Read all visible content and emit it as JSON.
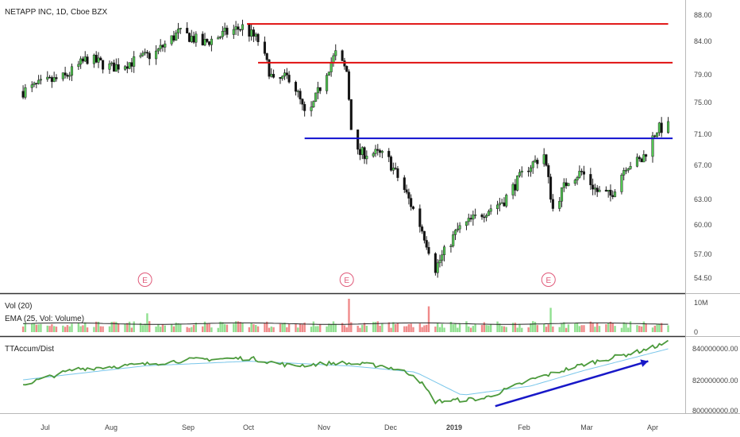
{
  "main": {
    "title": "NETAPP INC, 1D, Cboe BZX",
    "price_ticks": [
      "88.00",
      "84.00",
      "79.00",
      "75.00",
      "71.00",
      "67.00",
      "63.00",
      "60.00",
      "57.00",
      "54.50"
    ],
    "earnings_marker": "E"
  },
  "volume_panel": {
    "title": "Vol (20)",
    "subtitle": "EMA (25, Vol: Volume)",
    "ticks": [
      "10M",
      "0"
    ]
  },
  "accum_panel": {
    "title": "TTAccum/Dist",
    "ticks": [
      "840000000.00",
      "820000000.00",
      "800000000.00"
    ]
  },
  "time_axis": {
    "labels": [
      "Jul",
      "Aug",
      "Sep",
      "Oct",
      "Nov",
      "Dec",
      "2019",
      "Feb",
      "Mar",
      "Apr"
    ]
  },
  "colors": {
    "up": "#52c852",
    "down": "#111111",
    "vol_up": "#90e090",
    "vol_down": "#f08a8a",
    "resistance": "#e01010",
    "support": "#1010d0",
    "accum_line": "#4c9a3c",
    "accum_ma": "#79c6ea",
    "trend_arrow": "#1818c8",
    "earnings": "#e05a7a"
  },
  "chart_data": [
    {
      "type": "candlestick",
      "title": "NETAPP INC, 1D, Cboe BZX",
      "x_range": [
        "2018-06-21",
        "2019-04-08"
      ],
      "y_scale": "log",
      "y_ticks": [
        88.0,
        84.0,
        79.0,
        75.0,
        71.0,
        67.0,
        63.0,
        60.0,
        57.0,
        54.5
      ],
      "price_path": [
        [
          "2018-06-21",
          76.6
        ],
        [
          "2018-07-01",
          77.8
        ],
        [
          "2018-07-10",
          78.6
        ],
        [
          "2018-07-20",
          81.3
        ],
        [
          "2018-07-31",
          80.0
        ],
        [
          "2018-08-10",
          80.9
        ],
        [
          "2018-08-20",
          82.2
        ],
        [
          "2018-08-30",
          85.2
        ],
        [
          "2018-09-05",
          84.5
        ],
        [
          "2018-09-10",
          83.5
        ],
        [
          "2018-09-20",
          85.1
        ],
        [
          "2018-09-28",
          86.1
        ],
        [
          "2018-10-05",
          84.0
        ],
        [
          "2018-10-12",
          77.8
        ],
        [
          "2018-10-20",
          78.8
        ],
        [
          "2018-10-27",
          72.5
        ],
        [
          "2018-11-05",
          79.5
        ],
        [
          "2018-11-09",
          82.0
        ],
        [
          "2018-11-14",
          79.4
        ],
        [
          "2018-11-17",
          68.3
        ],
        [
          "2018-11-25",
          68.5
        ],
        [
          "2018-12-02",
          68.0
        ],
        [
          "2018-12-10",
          64.0
        ],
        [
          "2018-12-18",
          59.5
        ],
        [
          "2018-12-24",
          55.5
        ],
        [
          "2019-01-03",
          59.5
        ],
        [
          "2019-01-15",
          61.5
        ],
        [
          "2019-01-24",
          62.8
        ],
        [
          "2019-02-03",
          66.5
        ],
        [
          "2019-02-11",
          68.3
        ],
        [
          "2019-02-15",
          61.8
        ],
        [
          "2019-02-22",
          65.3
        ],
        [
          "2019-02-28",
          66.1
        ],
        [
          "2019-03-07",
          63.8
        ],
        [
          "2019-03-13",
          63.3
        ],
        [
          "2019-03-20",
          67.0
        ],
        [
          "2019-03-27",
          67.5
        ],
        [
          "2019-04-03",
          71.5
        ],
        [
          "2019-04-08",
          71.8
        ]
      ],
      "resistance_levels": [
        {
          "price": 86.6,
          "from": "2018-09-30",
          "to": "2019-04-08"
        },
        {
          "price": 80.7,
          "from": "2018-10-05",
          "to": "2019-04-10"
        }
      ],
      "support_levels": [
        {
          "price": 70.3,
          "from": "2018-10-26",
          "to": "2019-04-10"
        }
      ],
      "earnings_events": [
        "2018-08-15",
        "2018-11-14",
        "2019-02-13"
      ]
    },
    {
      "type": "bar",
      "title": "Vol (20)",
      "subtitle": "EMA (25, Vol: Volume)",
      "unit": "shares",
      "y_ticks": [
        "10M",
        "0"
      ],
      "ylim": [
        0,
        11000000
      ],
      "typical_volume": 2500000,
      "ema_level": 2800000,
      "notable_bars": [
        {
          "date": "2018-08-16",
          "value": 6200000,
          "direction": "up"
        },
        {
          "date": "2018-11-15",
          "value": 11000000,
          "direction": "down"
        },
        {
          "date": "2018-12-21",
          "value": 8500000,
          "direction": "down"
        },
        {
          "date": "2019-02-14",
          "value": 8000000,
          "direction": "up"
        }
      ]
    },
    {
      "type": "line",
      "title": "TTAccum/Dist",
      "y_ticks": [
        840000000,
        820000000,
        800000000
      ],
      "ylim": [
        795000000,
        847000000
      ],
      "series_path": [
        [
          "2018-06-21",
          817000000
        ],
        [
          "2018-07-15",
          827000000
        ],
        [
          "2018-08-15",
          830000000
        ],
        [
          "2018-09-05",
          833000000
        ],
        [
          "2018-10-01",
          834000000
        ],
        [
          "2018-10-20",
          829000000
        ],
        [
          "2018-11-10",
          831000000
        ],
        [
          "2018-12-01",
          829000000
        ],
        [
          "2018-12-15",
          823000000
        ],
        [
          "2018-12-24",
          806000000
        ],
        [
          "2019-01-15",
          808000000
        ],
        [
          "2019-02-05",
          820000000
        ],
        [
          "2019-03-01",
          830000000
        ],
        [
          "2019-03-25",
          838000000
        ],
        [
          "2019-04-08",
          844000000
        ]
      ],
      "moving_average_path": [
        [
          "2018-06-21",
          820000000
        ],
        [
          "2018-08-15",
          829000000
        ],
        [
          "2018-10-01",
          832000000
        ],
        [
          "2018-11-15",
          829000000
        ],
        [
          "2018-12-15",
          825000000
        ],
        [
          "2019-01-05",
          810000000
        ],
        [
          "2019-02-05",
          816000000
        ],
        [
          "2019-03-01",
          826000000
        ],
        [
          "2019-04-08",
          840000000
        ]
      ],
      "trend_arrow": {
        "from": [
          "2019-01-20",
          803000000
        ],
        "to": [
          "2019-03-30",
          832000000
        ]
      }
    }
  ]
}
